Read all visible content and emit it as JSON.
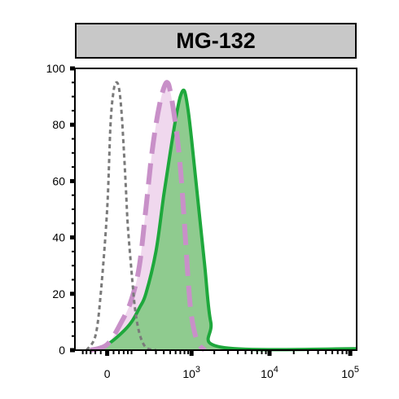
{
  "panel": {
    "title": "MG-132"
  },
  "chart_data": {
    "type": "area",
    "title": "MG-132",
    "xlabel": "",
    "ylabel": "",
    "x_scale": "biexponential",
    "xlim": [
      -150,
      120000
    ],
    "ylim": [
      0,
      100
    ],
    "yticks": [
      0,
      20,
      40,
      60,
      80,
      100
    ],
    "ytick_labels": [
      "0",
      "20",
      "40",
      "60",
      "80",
      "100"
    ],
    "xticks": [
      0,
      1000,
      10000,
      100000
    ],
    "xtick_labels": [
      {
        "base": "0",
        "exp": ""
      },
      {
        "base": "10",
        "exp": "3"
      },
      {
        "base": "10",
        "exp": "4"
      },
      {
        "base": "10",
        "exp": "5"
      }
    ],
    "grid": false,
    "legend": "none",
    "series": [
      {
        "color": "#7a7a7a",
        "line_style": "dotted",
        "filled": false,
        "x": [
          -80,
          -40,
          -20,
          0,
          10,
          20,
          30,
          40,
          50,
          60,
          70,
          80,
          100,
          120,
          150,
          200,
          300
        ],
        "y": [
          0,
          5,
          20,
          50,
          80,
          92,
          95,
          93,
          85,
          72,
          58,
          44,
          28,
          15,
          6,
          1,
          0
        ]
      },
      {
        "color": "#c890c8",
        "line_style": "dashed",
        "filled": true,
        "fill_color": "#f0d8ee",
        "x": [
          -60,
          0,
          50,
          100,
          150,
          200,
          250,
          300,
          350,
          400,
          450,
          500,
          600,
          700,
          800,
          900,
          1000,
          1200,
          1500
        ],
        "y": [
          0,
          2,
          10,
          18,
          30,
          50,
          68,
          80,
          88,
          93,
          95,
          92,
          80,
          65,
          45,
          25,
          12,
          3,
          0
        ]
      },
      {
        "color": "#1ea83c",
        "line_style": "solid",
        "filled": true,
        "fill_color": "#8fcb8f",
        "x": [
          -60,
          0,
          50,
          100,
          150,
          200,
          300,
          400,
          500,
          600,
          700,
          800,
          900,
          1000,
          1200,
          1500,
          1800,
          2500,
          120000
        ],
        "y": [
          0,
          2,
          6,
          10,
          15,
          20,
          35,
          55,
          70,
          82,
          90,
          92,
          85,
          75,
          55,
          30,
          10,
          1,
          0.5
        ]
      }
    ]
  }
}
